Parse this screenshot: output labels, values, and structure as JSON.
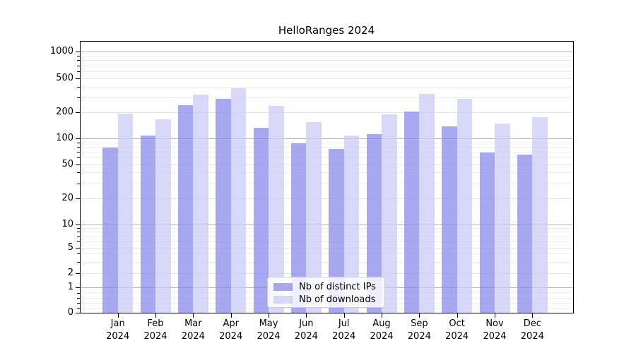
{
  "chart_data": {
    "type": "bar",
    "title": "HelloRanges 2024",
    "categories": [
      "Jan",
      "Feb",
      "Mar",
      "Apr",
      "May",
      "Jun",
      "Jul",
      "Aug",
      "Sep",
      "Oct",
      "Nov",
      "Dec"
    ],
    "x_tick_year": "2024",
    "series": [
      {
        "name": "Nb of distinct IPs",
        "color": "rgba(134,134,236,0.72)",
        "values": [
          78,
          108,
          243,
          288,
          134,
          87,
          76,
          113,
          206,
          137,
          68,
          65
        ]
      },
      {
        "name": "Nb of downloads",
        "color": "rgba(201,201,246,0.72)",
        "values": [
          195,
          168,
          320,
          385,
          238,
          153,
          107,
          190,
          330,
          288,
          150,
          176
        ]
      }
    ],
    "y_axis": {
      "scale": "symlog",
      "ticks": [
        0,
        1,
        2,
        5,
        10,
        20,
        50,
        100,
        200,
        500,
        1000
      ],
      "major_decades": [
        1,
        10,
        100,
        1000
      ],
      "minor_ticks": [
        0.2,
        0.4,
        0.6,
        0.8,
        3,
        4,
        6,
        7,
        8,
        9,
        30,
        40,
        60,
        70,
        80,
        90,
        300,
        400,
        600,
        700,
        800,
        900
      ],
      "ylim": [
        0,
        1300
      ]
    },
    "legend_position": "lower center",
    "grid": "both"
  },
  "colors": {
    "major_grid": "#b5b5b5",
    "labeled_grid": "#e4e4e4",
    "minor_grid": "#eeeeee",
    "spine": "#000000",
    "text": "#000000"
  }
}
